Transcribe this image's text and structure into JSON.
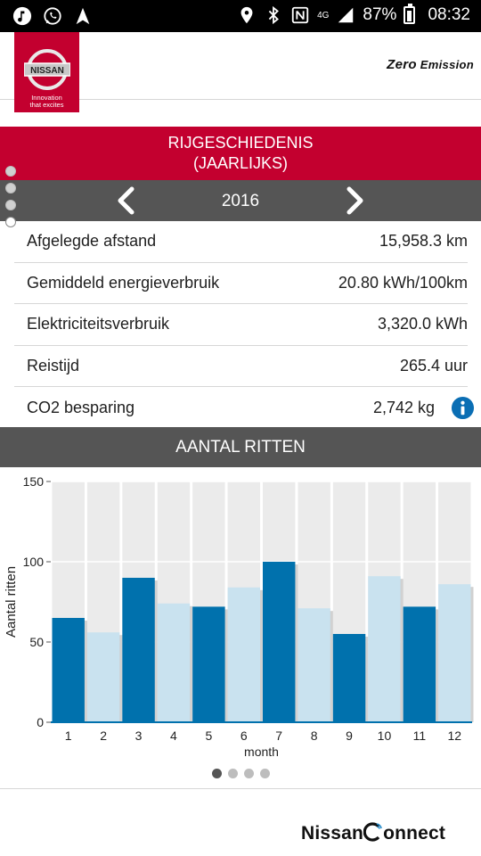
{
  "status_bar": {
    "battery": "87%",
    "time": "08:32",
    "network": "4G",
    "icons": [
      "music-icon",
      "whatsapp-icon",
      "navigation-icon",
      "location-icon",
      "bluetooth-icon",
      "nfc-icon",
      "signal-icon",
      "battery-icon"
    ]
  },
  "header": {
    "brand": "NISSAN",
    "tagline_line1": "Innovation",
    "tagline_line2": "that excites",
    "zero_emission": "Emission",
    "zero_prefix": "Zero"
  },
  "section": {
    "title_line1": "RIJGESCHIEDENIS",
    "title_line2": "(JAARLIJKS)",
    "year": "2016"
  },
  "stats": [
    {
      "label": "Afgelegde afstand",
      "value": "15,958.3 km"
    },
    {
      "label": "Gemiddeld energieverbruik",
      "value": "20.80 kWh/100km"
    },
    {
      "label": "Elektriciteitsverbruik",
      "value": "3,320.0 kWh"
    },
    {
      "label": "Reistijd",
      "value": "265.4 uur"
    },
    {
      "label": "CO2 besparing",
      "value": "2,742 kg"
    }
  ],
  "chart_banner": "AANTAL RITTEN",
  "chart_data": {
    "type": "bar",
    "categories": [
      "1",
      "2",
      "3",
      "4",
      "5",
      "6",
      "7",
      "8",
      "9",
      "10",
      "11",
      "12"
    ],
    "values": [
      65,
      56,
      90,
      74,
      72,
      84,
      100,
      71,
      55,
      91,
      72,
      86
    ],
    "xlabel": "month",
    "ylabel": "Aantal ritten",
    "ylim": [
      0,
      150
    ],
    "yticks": [
      0,
      50,
      100,
      150
    ],
    "colors": {
      "odd": "#0071ad",
      "even": "#c9e2ef",
      "plot_bg": "#ebebeb",
      "grid": "#ffffff"
    }
  },
  "pager": {
    "count": 4,
    "active": 0
  },
  "footer": {
    "brand": "NissanConnect",
    "brand_a": "Nissan",
    "brand_b": "onnect"
  },
  "colors": {
    "brand_red": "#c3002f",
    "bar_gray": "#555555",
    "info_blue": "#0a6eb4"
  }
}
